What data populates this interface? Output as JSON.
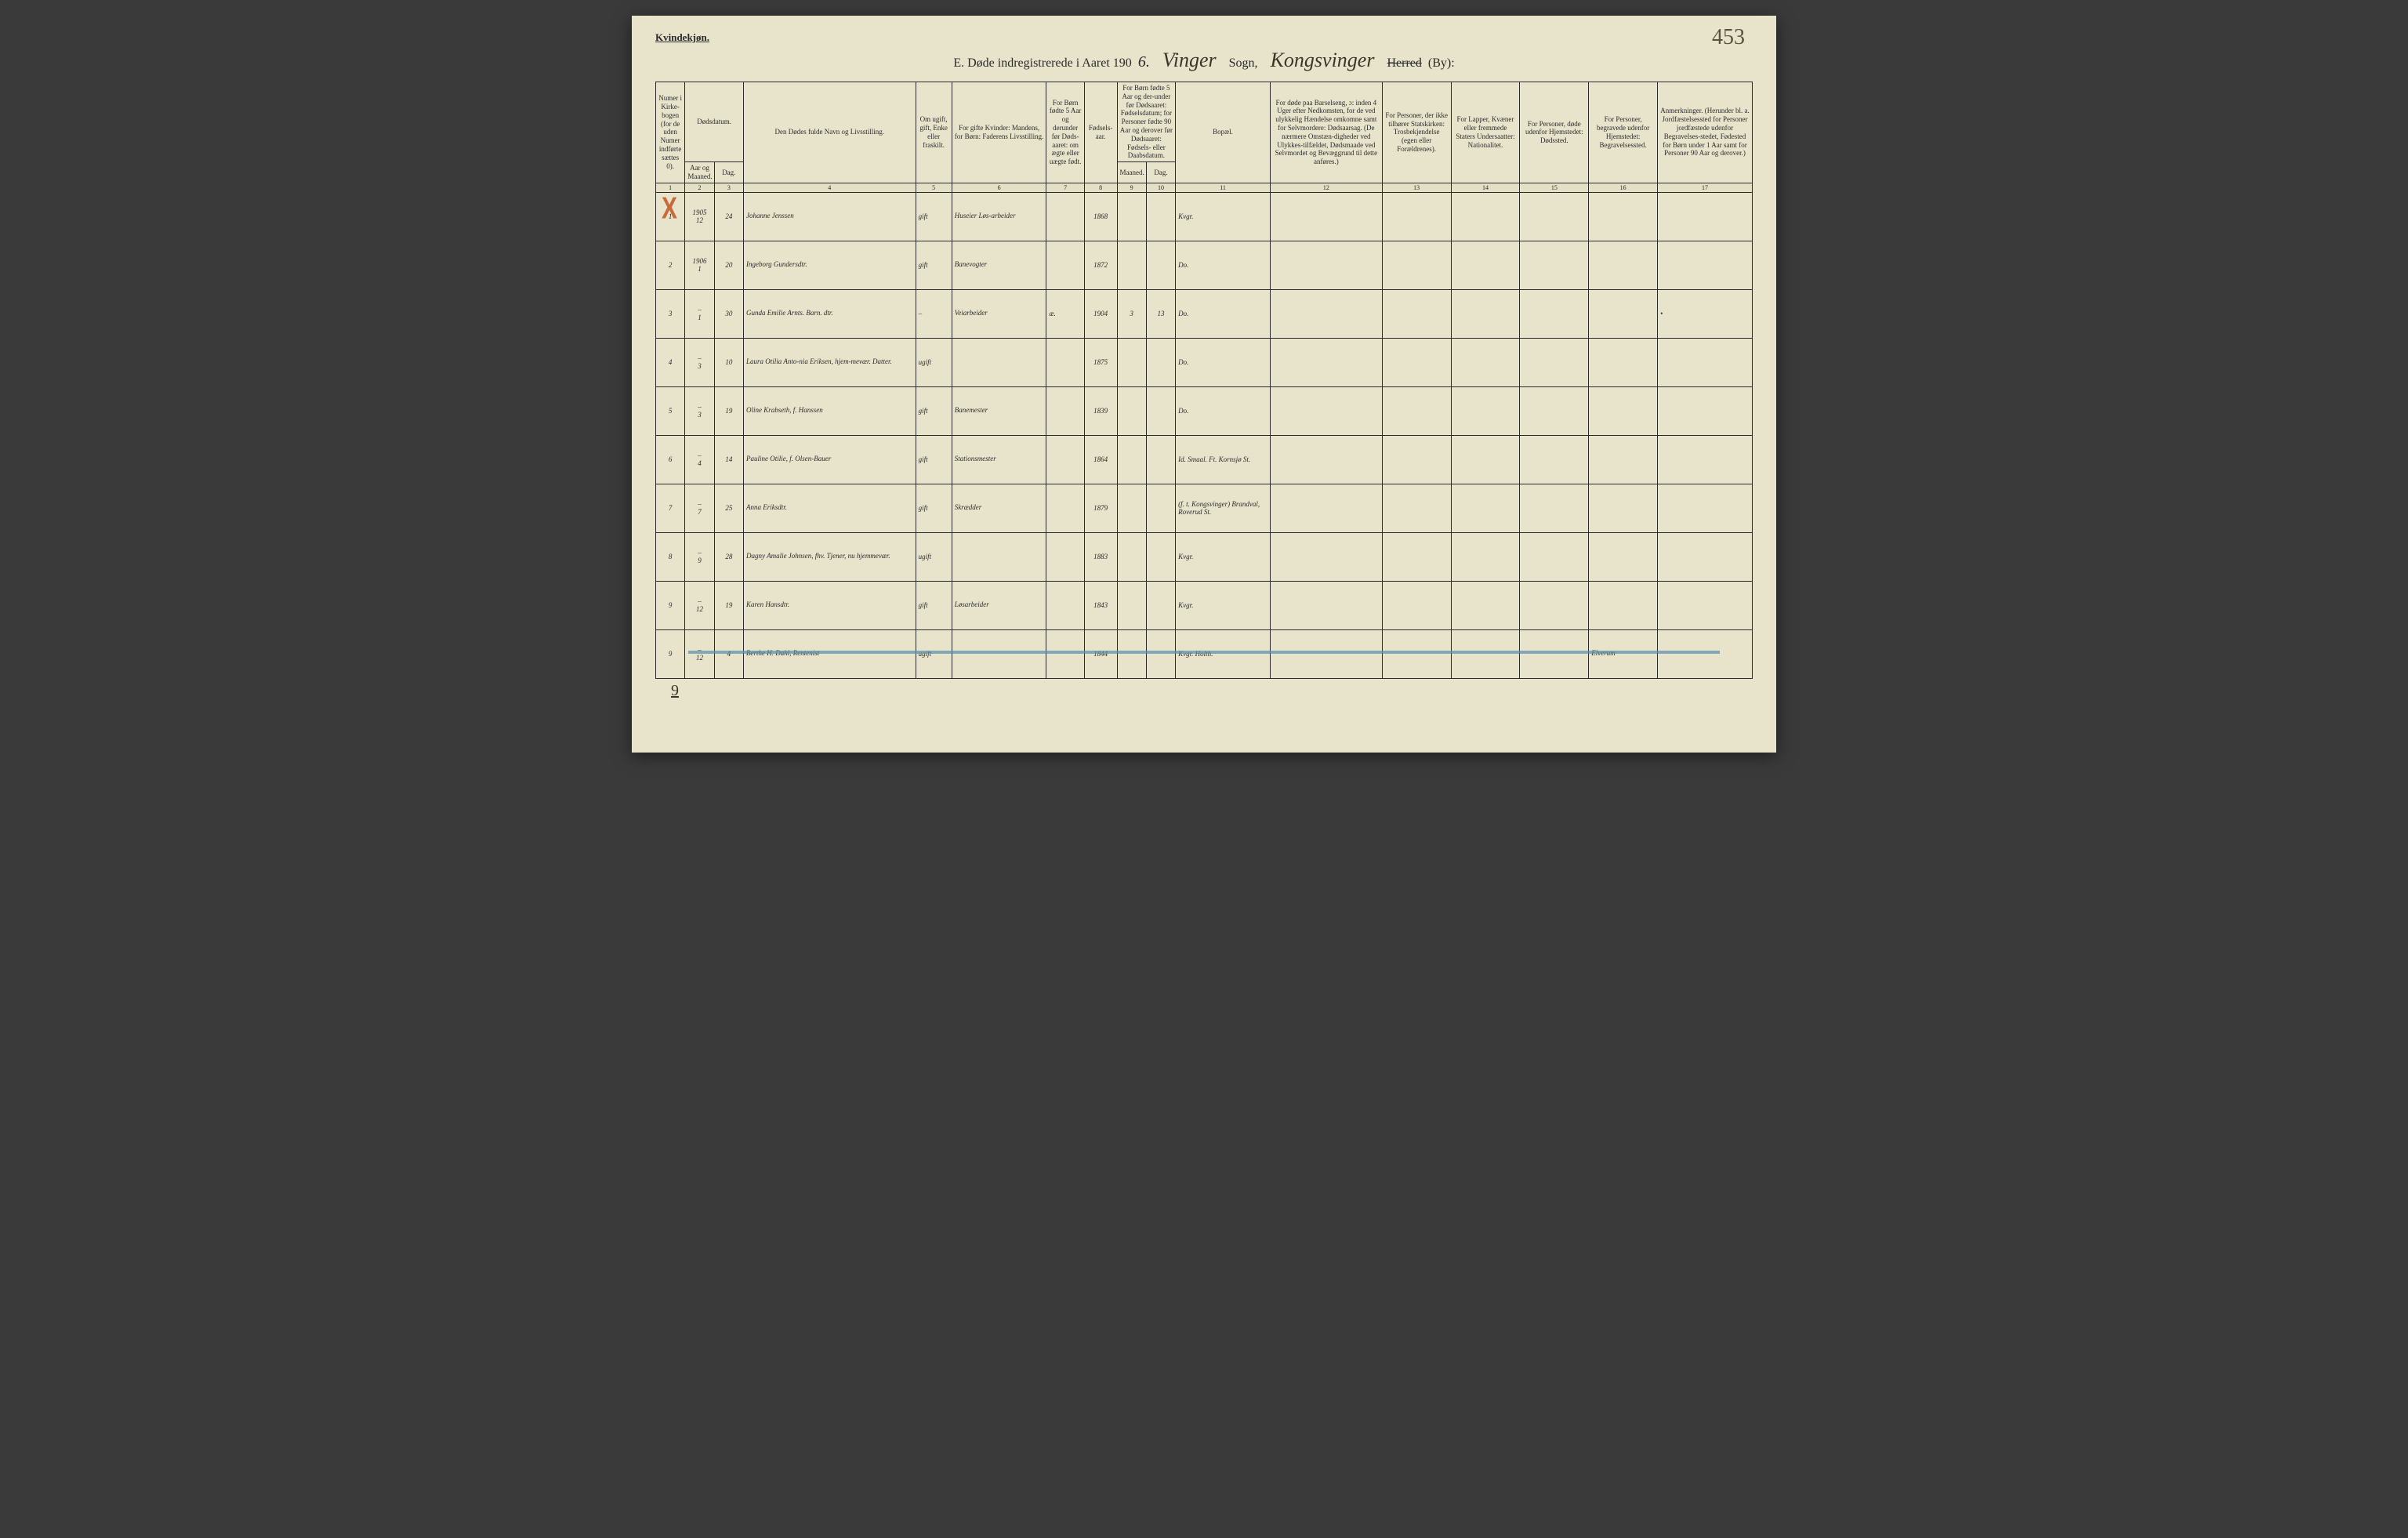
{
  "page_number": "453",
  "gender_label": "Kvindekjøn.",
  "title": {
    "prefix": "E.  Døde indregistrerede i Aaret 190",
    "year_suffix": "6.",
    "parish_script": "Vinger",
    "sogn_label": "Sogn,",
    "district_script": "Kongsvinger",
    "herred_label": "Herred",
    "by_label": "(By):"
  },
  "headers": {
    "c1": "Numer i Kirke-bogen (for de uden Numer indførte sættes 0).",
    "c2_3_group": "Dødsdatum.",
    "c2": "Aar og Maaned.",
    "c3": "Dag.",
    "c4": "Den Dødes fulde Navn og Livsstilling.",
    "c5": "Om ugift, gift, Enke eller fraskilt.",
    "c6": "For gifte Kvinder: Mandens, for Børn: Faderens Livsstilling.",
    "c7": "For Børn fødte 5 Aar og derunder før Døds-aaret: om ægte eller uægte født.",
    "c8": "Fødsels-aar.",
    "c9_10_group": "For Børn fødte 5 Aar og der-under før Dødsaaret: Fødselsdatum; for Personer fødte 90 Aar og derover før Dødsaaret: Fødsels- eller Daabsdatum.",
    "c9": "Maaned.",
    "c10": "Dag.",
    "c11": "Bopæl.",
    "c12": "For døde paa Barselseng, ɔ: inden 4 Uger efter Nedkomsten, for de ved ulykkelig Hændelse omkomne samt for Selvmordere: Dødsaarsag. (De nærmere Omstæn-digheder ved Ulykkes-tilfældet, Dødsmaade ved Selvmordet og Bevæggrund til dette anføres.)",
    "c13": "For Personer, der ikke tilhører Statskirken: Trosbekjendelse (egen eller Forældrenes).",
    "c14": "For Lapper, Kvæner eller fremmede Staters Undersaatter: Nationalitet.",
    "c15": "For Personer, døde udenfor Hjemstedet: Dødssted.",
    "c16": "For Personer, begravede udenfor Hjemstedet: Begravelsessted.",
    "c17": "Anmerkninger. (Herunder bl. a. Jordfæstelsessted for Personer jordfæstede udenfor Begravelses-stedet, Fødested for Børn under 1 Aar samt for Personer 90 Aar og derover.)"
  },
  "colnums": [
    "1",
    "2",
    "3",
    "4",
    "5",
    "6",
    "7",
    "8",
    "9",
    "10",
    "11",
    "12",
    "13",
    "14",
    "15",
    "16",
    "17"
  ],
  "rows": [
    {
      "num": "1",
      "year_month": "1905\n12",
      "day": "24",
      "name": "Johanne Jenssen",
      "status": "gift",
      "spouse_occ": "Huseier Løs-arbeider",
      "c7": "",
      "birth_year": "1868",
      "bm": "",
      "bd": "",
      "residence": "Kvgr.",
      "c12": "",
      "c13": "",
      "c14": "",
      "c15": "",
      "c16": "",
      "c17": "",
      "red_x": true
    },
    {
      "num": "2",
      "year_month": "1906\n1",
      "day": "20",
      "name": "Ingeborg Gundersdtr.",
      "status": "gift",
      "spouse_occ": "Banevogter",
      "c7": "",
      "birth_year": "1872",
      "bm": "",
      "bd": "",
      "residence": "Do.",
      "c12": "",
      "c13": "",
      "c14": "",
      "c15": "",
      "c16": "",
      "c17": ""
    },
    {
      "num": "3",
      "year_month": "–\n1",
      "day": "30",
      "name": "Gunda Emilie Arnts. Barn. dtr.",
      "status": "–",
      "spouse_occ": "Veiarbeider",
      "c7": "æ.",
      "birth_year": "1904",
      "bm": "3",
      "bd": "13",
      "residence": "Do.",
      "c12": "",
      "c13": "",
      "c14": "",
      "c15": "",
      "c16": "",
      "c17": "•"
    },
    {
      "num": "4",
      "year_month": "–\n3",
      "day": "10",
      "name": "Laura Otilia Anto-nia Eriksen, hjem-mevær. Datter.",
      "status": "ugift",
      "spouse_occ": "",
      "c7": "",
      "birth_year": "1875",
      "bm": "",
      "bd": "",
      "residence": "Do.",
      "c12": "",
      "c13": "",
      "c14": "",
      "c15": "",
      "c16": "",
      "c17": ""
    },
    {
      "num": "5",
      "year_month": "–\n3",
      "day": "19",
      "name": "Oline Krabseth, f. Hanssen",
      "status": "gift",
      "spouse_occ": "Banemester",
      "c7": "",
      "birth_year": "1839",
      "bm": "",
      "bd": "",
      "residence": "Do.",
      "c12": "",
      "c13": "",
      "c14": "",
      "c15": "",
      "c16": "",
      "c17": ""
    },
    {
      "num": "6",
      "year_month": "–\n4",
      "day": "14",
      "name": "Pauline Otilie, f. Olsen-Bauer",
      "status": "gift",
      "spouse_occ": "Stationsmester",
      "c7": "",
      "birth_year": "1864",
      "bm": "",
      "bd": "",
      "residence": "Id. Smaal. Ft. Kornsjø St.",
      "residence_purple": true,
      "c12": "",
      "c13": "",
      "c14": "",
      "c15": "",
      "c16": "",
      "c17": ""
    },
    {
      "num": "7",
      "year_month": "–\n7",
      "day": "25",
      "name": "Anna Eriksdtr.",
      "status": "gift",
      "spouse_occ": "Skrædder",
      "c7": "",
      "birth_year": "1879",
      "bm": "",
      "bd": "",
      "residence": "(f. t. Kongsvinger) Brandval, Roverud St.",
      "residence_purple": true,
      "c12": "",
      "c13": "",
      "c14": "",
      "c15": "",
      "c16": "",
      "c17": ""
    },
    {
      "num": "8",
      "year_month": "–\n9",
      "day": "28",
      "name": "Dagny Amalie Johnsen, fhv. Tjener, nu hjemmevær.",
      "status": "ugift",
      "spouse_occ": "",
      "c7": "",
      "birth_year": "1883",
      "bm": "",
      "bd": "",
      "residence": "Kvgr.",
      "c12": "",
      "c13": "",
      "c14": "",
      "c15": "",
      "c16": "",
      "c17": ""
    },
    {
      "num": "9",
      "year_month": "–\n12",
      "day": "4",
      "name": "Berthe H. Dahl, Rentenist",
      "status": "ugift",
      "spouse_occ": "",
      "c7": "",
      "birth_year": "1844",
      "bm": "",
      "bd": "",
      "residence": "Kvgr. Holth.",
      "c12": "",
      "c13": "",
      "c14": "",
      "c15": "",
      "c16": "Elverum",
      "c17": "",
      "struck": true
    },
    {
      "num": "9",
      "year_month": "–\n12",
      "day": "19",
      "name": "Karen Hansdtr.",
      "status": "gift",
      "spouse_occ": "Løsarbeider",
      "c7": "",
      "birth_year": "1843",
      "bm": "",
      "bd": "",
      "residence": "Kvgr.",
      "c12": "",
      "c13": "",
      "c14": "",
      "c15": "",
      "c16": "",
      "c17": ""
    }
  ],
  "foot_tally": "9"
}
